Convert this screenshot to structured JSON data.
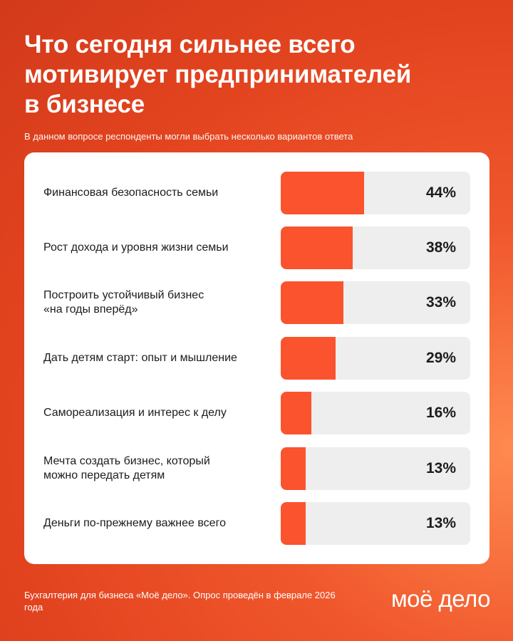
{
  "header": {
    "title": "Что сегодня сильнее всего\nмотивирует предпринимателей\nв бизнесе",
    "subtitle": "В данном вопросе респонденты могли выбрать несколько вариантов ответа"
  },
  "colors": {
    "accent": "#fb532e",
    "track": "#eeeeee",
    "background": "#e2431f"
  },
  "chart_data": {
    "type": "bar",
    "orientation": "horizontal",
    "unit": "%",
    "xlim": [
      0,
      100
    ],
    "categories": [
      "Финансовая безопасность семьи",
      "Рост дохода и уровня жизни семьи",
      "Построить устойчивый бизнес\n«на годы вперёд»",
      "Дать детям старт: опыт и мышление",
      "Самореализация и интерес к делу",
      "Мечта создать бизнес, который\nможно передать детям",
      "Деньги по-прежнему важнее всего"
    ],
    "values": [
      44,
      38,
      33,
      29,
      16,
      13,
      13
    ],
    "value_labels": [
      "44%",
      "38%",
      "33%",
      "29%",
      "16%",
      "13%",
      "13%"
    ]
  },
  "footer": {
    "note": "Бухгалтерия для бизнеса «Моё дело». Опрос проведён в феврале 2026 года",
    "logo_text": "моё дело"
  }
}
